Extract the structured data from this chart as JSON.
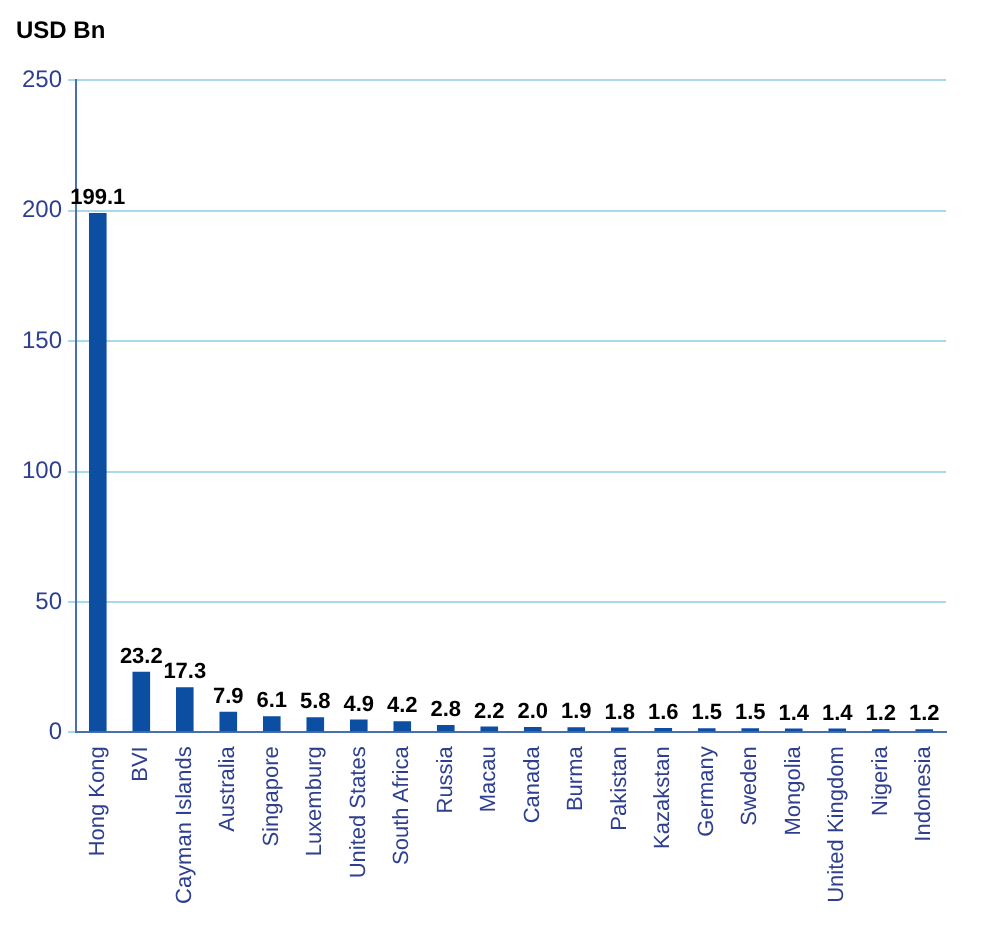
{
  "chart_data": {
    "type": "bar",
    "ylabel": "USD Bn",
    "categories": [
      "Hong Kong",
      "BVI",
      "Cayman Islands",
      "Australia",
      "Singapore",
      "Luxemburg",
      "United States",
      "South Africa",
      "Russia",
      "Macau",
      "Canada",
      "Burma",
      "Pakistan",
      "Kazakstan",
      "Germany",
      "Sweden",
      "Mongolia",
      "United Kingdom",
      "Nigeria",
      "Indonesia"
    ],
    "values": [
      199.1,
      23.2,
      17.3,
      7.9,
      6.1,
      5.8,
      4.9,
      4.2,
      2.8,
      2.2,
      2.0,
      1.9,
      1.8,
      1.6,
      1.5,
      1.5,
      1.4,
      1.4,
      1.2,
      1.2
    ],
    "value_labels": [
      "199.1",
      "23.2",
      "17.3",
      "7.9",
      "6.1",
      "5.8",
      "4.9",
      "4.2",
      "2.8",
      "2.2",
      "2.0",
      "1.9",
      "1.8",
      "1.6",
      "1.5",
      "1.5",
      "1.4",
      "1.4",
      "1.2",
      "1.2"
    ],
    "color": "#0b4ea2",
    "ylim": [
      0,
      250
    ],
    "yticks": [
      0,
      50,
      100,
      150,
      200,
      250
    ],
    "grid": "y"
  }
}
